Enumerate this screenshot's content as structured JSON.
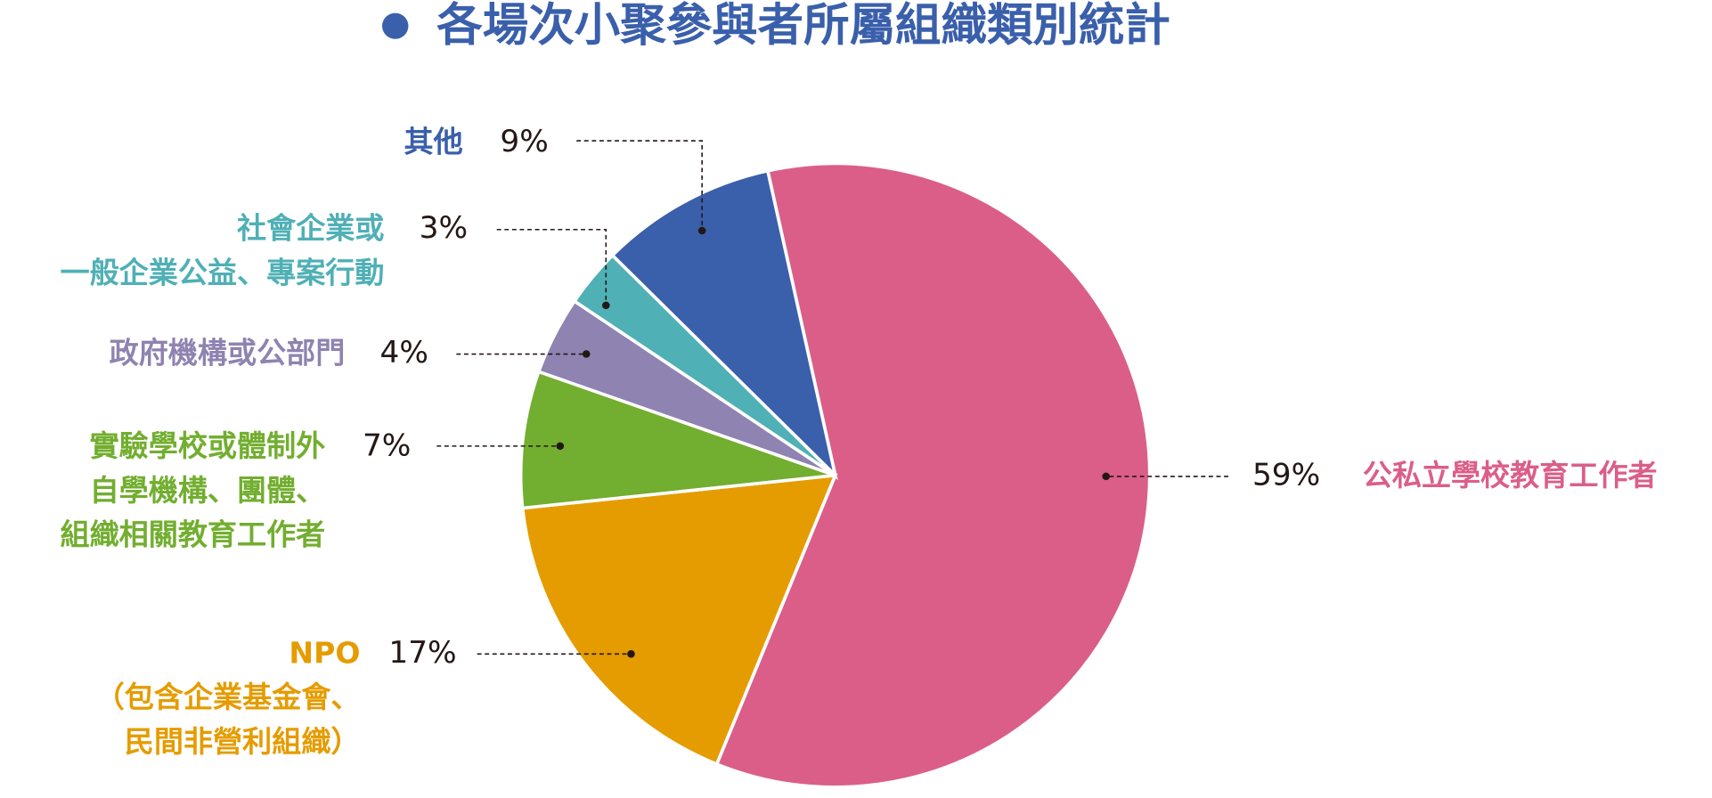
{
  "chart_data": {
    "type": "pie",
    "title": "各場次小聚參與者所屬組織類別統計",
    "categories": [
      "公私立學校教育工作者",
      "NPO\n（包含企業基金會、\n民間非營利組織）",
      "實驗學校或體制外\n自學機構、團體、\n組織相關教育工作者",
      "政府機構或公部門",
      "社會企業或\n一般企業公益、專案行動",
      "其他"
    ],
    "values": [
      59,
      17,
      7,
      4,
      3,
      9
    ],
    "value_labels": [
      "59%",
      "17%",
      "7%",
      "4%",
      "3%",
      "9%"
    ],
    "colors": [
      "#db5e89",
      "#e59c00",
      "#72ae2f",
      "#8f83b1",
      "#4fb0b6",
      "#3a5fab"
    ],
    "title_color": "#3a5fab"
  }
}
